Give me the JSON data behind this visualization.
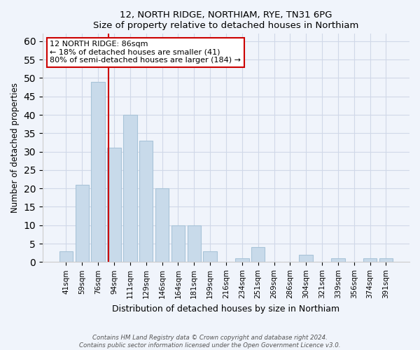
{
  "title": "12, NORTH RIDGE, NORTHIAM, RYE, TN31 6PG",
  "subtitle": "Size of property relative to detached houses in Northiam",
  "xlabel": "Distribution of detached houses by size in Northiam",
  "ylabel": "Number of detached properties",
  "bar_labels": [
    "41sqm",
    "59sqm",
    "76sqm",
    "94sqm",
    "111sqm",
    "129sqm",
    "146sqm",
    "164sqm",
    "181sqm",
    "199sqm",
    "216sqm",
    "234sqm",
    "251sqm",
    "269sqm",
    "286sqm",
    "304sqm",
    "321sqm",
    "339sqm",
    "356sqm",
    "374sqm",
    "391sqm"
  ],
  "bar_values": [
    3,
    21,
    49,
    31,
    40,
    33,
    20,
    10,
    10,
    3,
    0,
    1,
    4,
    0,
    0,
    2,
    0,
    1,
    0,
    1,
    1
  ],
  "bar_color": "#c8daea",
  "bar_edge_color": "#a8c4d8",
  "vline_color": "#cc0000",
  "vline_x_idx": 3,
  "annotation_title": "12 NORTH RIDGE: 86sqm",
  "annotation_line1": "← 18% of detached houses are smaller (41)",
  "annotation_line2": "80% of semi-detached houses are larger (184) →",
  "annotation_box_color": "#ffffff",
  "annotation_box_edge_color": "#cc0000",
  "ylim": [
    0,
    62
  ],
  "yticks": [
    0,
    5,
    10,
    15,
    20,
    25,
    30,
    35,
    40,
    45,
    50,
    55,
    60
  ],
  "footer_line1": "Contains HM Land Registry data © Crown copyright and database right 2024.",
  "footer_line2": "Contains public sector information licensed under the Open Government Licence v3.0.",
  "bg_color": "#f0f4fb",
  "grid_color": "#d0d8e8"
}
